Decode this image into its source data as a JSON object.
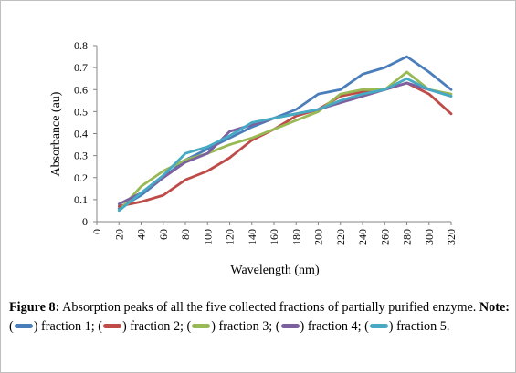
{
  "chart_data": {
    "type": "line",
    "xlabel": "Wavelength (nm)",
    "ylabel": "Absorbance (au)",
    "x": [
      20,
      40,
      60,
      80,
      100,
      120,
      140,
      160,
      180,
      200,
      220,
      240,
      260,
      280,
      300,
      320
    ],
    "x_tick_labels": [
      "0",
      "20",
      "40",
      "60",
      "80",
      "100",
      "120",
      "140",
      "160",
      "180",
      "200",
      "220",
      "240",
      "260",
      "280",
      "300",
      "320"
    ],
    "xlim": [
      0,
      320
    ],
    "ylim": [
      0,
      0.8
    ],
    "y_tick_labels": [
      "0",
      "0.1",
      "0.2",
      "0.3",
      "0.4",
      "0.5",
      "0.6",
      "0.7",
      "0.8"
    ],
    "y_ticks": [
      0,
      0.1,
      0.2,
      0.3,
      0.4,
      0.5,
      0.6,
      0.7,
      0.8
    ],
    "grid": false,
    "legend": "caption",
    "series": [
      {
        "name": "fraction 1",
        "color": "#4a7ebb",
        "values": [
          0.06,
          0.12,
          0.2,
          0.28,
          0.33,
          0.38,
          0.43,
          0.47,
          0.51,
          0.58,
          0.6,
          0.67,
          0.7,
          0.75,
          0.68,
          0.6
        ]
      },
      {
        "name": "fraction 2",
        "color": "#be4b48",
        "values": [
          0.07,
          0.09,
          0.12,
          0.19,
          0.23,
          0.29,
          0.37,
          0.42,
          0.48,
          0.51,
          0.57,
          0.59,
          0.6,
          0.63,
          0.58,
          0.49
        ]
      },
      {
        "name": "fraction 3",
        "color": "#98b954",
        "values": [
          0.05,
          0.16,
          0.23,
          0.28,
          0.31,
          0.35,
          0.38,
          0.42,
          0.46,
          0.5,
          0.58,
          0.6,
          0.6,
          0.68,
          0.6,
          0.58
        ]
      },
      {
        "name": "fraction 4",
        "color": "#7d60a0",
        "values": [
          0.08,
          0.13,
          0.2,
          0.27,
          0.31,
          0.41,
          0.44,
          0.47,
          0.49,
          0.51,
          0.54,
          0.57,
          0.6,
          0.63,
          0.6,
          0.57
        ]
      },
      {
        "name": "fraction 5",
        "color": "#46aac5",
        "values": [
          0.05,
          0.13,
          0.21,
          0.31,
          0.34,
          0.39,
          0.45,
          0.47,
          0.49,
          0.51,
          0.55,
          0.58,
          0.6,
          0.65,
          0.6,
          0.57
        ]
      }
    ]
  },
  "caption": {
    "figure_label": "Figure 8:",
    "text": " Absorption peaks of all the five collected fractions of partially purified enzyme. ",
    "note_label": "Note:",
    "legend_items": [
      {
        "label": "fraction 1;",
        "color": "#4a7ebb"
      },
      {
        "label": "fraction 2;",
        "color": "#be4b48"
      },
      {
        "label": "fraction 3;",
        "color": "#98b954"
      },
      {
        "label": "fraction 4;",
        "color": "#7d60a0"
      },
      {
        "label": "fraction 5.",
        "color": "#46aac5"
      }
    ]
  }
}
